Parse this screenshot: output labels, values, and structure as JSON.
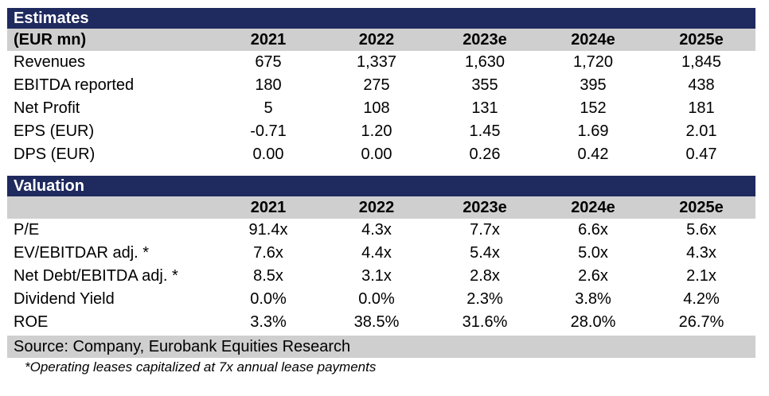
{
  "estimates": {
    "title": "Estimates",
    "unit_label": "(EUR mn)",
    "years": [
      "2021",
      "2022",
      "2023e",
      "2024e",
      "2025e"
    ],
    "rows": [
      {
        "label": "Revenues",
        "values": [
          "675",
          "1,337",
          "1,630",
          "1,720",
          "1,845"
        ]
      },
      {
        "label": "EBITDA reported",
        "values": [
          "180",
          "275",
          "355",
          "395",
          "438"
        ]
      },
      {
        "label": "Net Profit",
        "values": [
          "5",
          "108",
          "131",
          "152",
          "181"
        ]
      },
      {
        "label": "EPS (EUR)",
        "values": [
          "-0.71",
          "1.20",
          "1.45",
          "1.69",
          "2.01"
        ]
      },
      {
        "label": "DPS (EUR)",
        "values": [
          "0.00",
          "0.00",
          "0.26",
          "0.42",
          "0.47"
        ]
      }
    ]
  },
  "valuation": {
    "title": "Valuation",
    "unit_label": "",
    "years": [
      "2021",
      "2022",
      "2023e",
      "2024e",
      "2025e"
    ],
    "rows": [
      {
        "label": "P/E",
        "values": [
          "91.4x",
          "4.3x",
          "7.7x",
          "6.6x",
          "5.6x"
        ]
      },
      {
        "label": "EV/EBITDAR adj. *",
        "values": [
          "7.6x",
          "4.4x",
          "5.4x",
          "5.0x",
          "4.3x"
        ]
      },
      {
        "label": "Net Debt/EBITDA adj. *",
        "values": [
          "8.5x",
          "3.1x",
          "2.8x",
          "2.6x",
          "2.1x"
        ]
      },
      {
        "label": "Dividend Yield",
        "values": [
          "0.0%",
          "0.0%",
          "2.3%",
          "3.8%",
          "4.2%"
        ]
      },
      {
        "label": "ROE",
        "values": [
          "3.3%",
          "38.5%",
          "31.6%",
          "28.0%",
          "26.7%"
        ]
      }
    ]
  },
  "source": "Source: Company, Eurobank Equities Research",
  "footnote": "*Operating leases capitalized at 7x annual lease payments",
  "colors": {
    "band": "#1f2a5e",
    "header_bg": "#cfcfcf"
  }
}
